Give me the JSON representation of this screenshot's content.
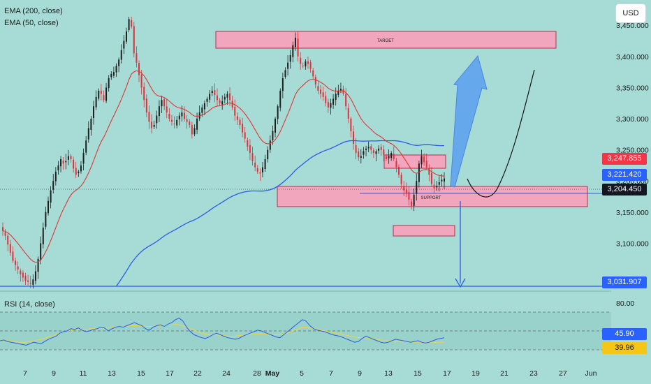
{
  "legend": {
    "ema200": "EMA (200, close)",
    "ema50": "EMA (50, close)",
    "rsi": "RSI (14, close)"
  },
  "currency_button": "USD",
  "annotations": {
    "target_label": "TARGET",
    "support_label": "SUPPORT"
  },
  "price_tags": {
    "ema50": {
      "value": "3,247.855",
      "color": "#f23645"
    },
    "ema200": {
      "value": "3,221.420",
      "color": "#2962ff"
    },
    "last": {
      "value": "3,204.450",
      "color": "#131722"
    },
    "bottom_line": {
      "value": "3,031.907",
      "color": "#2962ff"
    }
  },
  "rsi_tags": {
    "rsi": {
      "value": "45.90",
      "color": "#2962ff"
    },
    "ma": {
      "value": "39.96",
      "color": "#f5c518"
    }
  },
  "colors": {
    "up": "#1e1e1e",
    "down": "#e0303a",
    "ema50": "#e03535",
    "ema200": "#2b5ce6",
    "zone": "#f2a6bd",
    "zone_border": "#b0304a",
    "arrow": "#5a9ff0",
    "bg": "#a7dcd6"
  },
  "chart_data": [
    {
      "type": "candlestick",
      "ylim": [
        3031,
        3485
      ],
      "y_ticks": [
        3100,
        3150,
        3200,
        3250,
        3300,
        3350,
        3400,
        3450
      ],
      "y_tick_labels": [
        "3,100.000",
        "3,150.000",
        "3,200.000",
        "3,250.000",
        "3,300.000",
        "3,350.000",
        "3,400.000",
        "3,450.000"
      ],
      "x_tick_labels": [
        "7",
        "9",
        "11",
        "13",
        "15",
        "17",
        "22",
        "24",
        "28",
        "May",
        "5",
        "7",
        "9",
        "13",
        "15",
        "17",
        "19",
        "21",
        "23",
        "27",
        "Jun"
      ],
      "closes": [
        3120,
        3112,
        3098,
        3085,
        3072,
        3065,
        3058,
        3050,
        3045,
        3040,
        3038,
        3035,
        3042,
        3055,
        3075,
        3100,
        3125,
        3150,
        3168,
        3185,
        3200,
        3215,
        3225,
        3235,
        3228,
        3232,
        3240,
        3235,
        3220,
        3210,
        3215,
        3225,
        3245,
        3265,
        3285,
        3300,
        3320,
        3335,
        3345,
        3340,
        3330,
        3350,
        3365,
        3372,
        3375,
        3385,
        3395,
        3410,
        3425,
        3440,
        3460,
        3448,
        3405,
        3390,
        3370,
        3350,
        3330,
        3310,
        3295,
        3285,
        3290,
        3305,
        3320,
        3330,
        3320,
        3310,
        3300,
        3295,
        3292,
        3298,
        3305,
        3310,
        3300,
        3295,
        3290,
        3275,
        3285,
        3300,
        3310,
        3318,
        3325,
        3332,
        3340,
        3345,
        3338,
        3330,
        3325,
        3328,
        3335,
        3340,
        3330,
        3318,
        3305,
        3298,
        3290,
        3278,
        3268,
        3255,
        3245,
        3232,
        3222,
        3215,
        3212,
        3222,
        3235,
        3250,
        3265,
        3280,
        3300,
        3320,
        3345,
        3365,
        3378,
        3390,
        3402,
        3418,
        3430,
        3400,
        3388,
        3385,
        3392,
        3388,
        3380,
        3368,
        3355,
        3345,
        3340,
        3335,
        3325,
        3318,
        3325,
        3332,
        3340,
        3345,
        3348,
        3340,
        3320,
        3300,
        3280,
        3260,
        3245,
        3238,
        3240,
        3248,
        3252,
        3255,
        3250,
        3245,
        3248,
        3252,
        3250,
        3242,
        3235,
        3240,
        3245,
        3235,
        3222,
        3210,
        3195,
        3185,
        3180,
        3170,
        3160,
        3178,
        3200,
        3228,
        3240,
        3230,
        3222,
        3210,
        3195,
        3188,
        3192,
        3198,
        3202,
        3204
      ]
    },
    {
      "type": "line",
      "title": "RSI (14, close)",
      "ylim": [
        25,
        80
      ],
      "y_tick_labels": [
        "80.00"
      ],
      "series": [
        {
          "name": "RSI (14, close)",
          "values": [
            42,
            43,
            41,
            40,
            39,
            38,
            37,
            36,
            38,
            40,
            39,
            38,
            41,
            44,
            46,
            48,
            52,
            54,
            55,
            58,
            57,
            59,
            56,
            54,
            55,
            57,
            58,
            60,
            59,
            55,
            58,
            60,
            61,
            60,
            62,
            64,
            66,
            64,
            62,
            58,
            56,
            60,
            62,
            63,
            61,
            64,
            66,
            70,
            72,
            68,
            60,
            54,
            50,
            48,
            46,
            45,
            47,
            50,
            52,
            50,
            48,
            46,
            45,
            44,
            45,
            48,
            50,
            52,
            54,
            56,
            55,
            53,
            51,
            49,
            47,
            46,
            50,
            54,
            58,
            62,
            66,
            70,
            68,
            62,
            58,
            56,
            55,
            54,
            52,
            50,
            49,
            48,
            46,
            44,
            42,
            40,
            41,
            45,
            48,
            46,
            44,
            42,
            40,
            39,
            40,
            42,
            44,
            43,
            42,
            41,
            40,
            41,
            42,
            40,
            39,
            40,
            42,
            44,
            45,
            46
          ]
        },
        {
          "name": "RSI-based MA",
          "values": [
            43,
            42,
            42,
            41,
            41,
            40,
            40,
            40,
            41,
            42,
            43,
            44,
            45,
            47,
            48,
            50,
            52,
            54,
            55,
            56,
            57,
            57,
            57,
            57,
            58,
            58,
            59,
            59,
            59,
            59,
            60,
            60,
            61,
            61,
            61,
            62,
            62,
            62,
            62,
            61,
            61,
            61,
            62,
            62,
            63,
            63,
            63,
            64,
            63,
            62,
            60,
            58,
            56,
            54,
            52,
            51,
            50,
            50,
            50,
            49,
            49,
            48,
            48,
            48,
            49,
            49,
            50,
            50,
            51,
            51,
            51,
            51,
            51,
            50,
            50,
            50,
            51,
            52,
            54,
            56,
            58,
            60,
            60,
            59,
            58,
            57,
            56,
            55,
            54,
            53,
            52,
            51,
            50,
            49,
            48,
            47,
            46,
            46,
            46,
            45,
            45,
            44,
            43,
            42,
            42,
            41,
            41,
            41,
            41,
            41,
            40,
            40,
            40,
            40,
            40,
            40,
            40,
            40,
            40,
            40
          ]
        }
      ]
    }
  ]
}
